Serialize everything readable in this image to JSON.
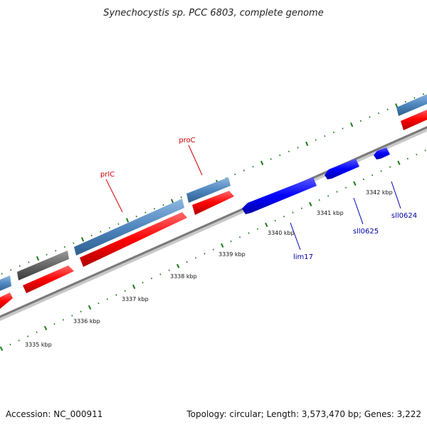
{
  "title": "Synechocystis sp. PCC 6803, complete genome",
  "accession": "Accession: NC_000911",
  "summary": "Topology: circular; Length: 3,573,470 bp; Genes: 3,222",
  "tick_labels": [
    "3335 kbp",
    "3336 kbp",
    "3337 kbp",
    "3338 kbp",
    "3339 kbp",
    "3340 kbp",
    "3341 kbp",
    "3342 kbp"
  ],
  "gene_labels": {
    "proC": "proC",
    "prlC": "prlC",
    "lim17": "lim17",
    "sll0625": "sll0625",
    "sll0624": "sll0624"
  },
  "colors": {
    "forward_cds": "#ff0000",
    "forward_gene": "#4f87bf",
    "other_feature": "#666666",
    "reverse_cds": "#0000ff",
    "backbone": "#888888",
    "ticks": "#1a7a1a",
    "label_forward": "#cc0000",
    "label_reverse": "#0000aa"
  }
}
